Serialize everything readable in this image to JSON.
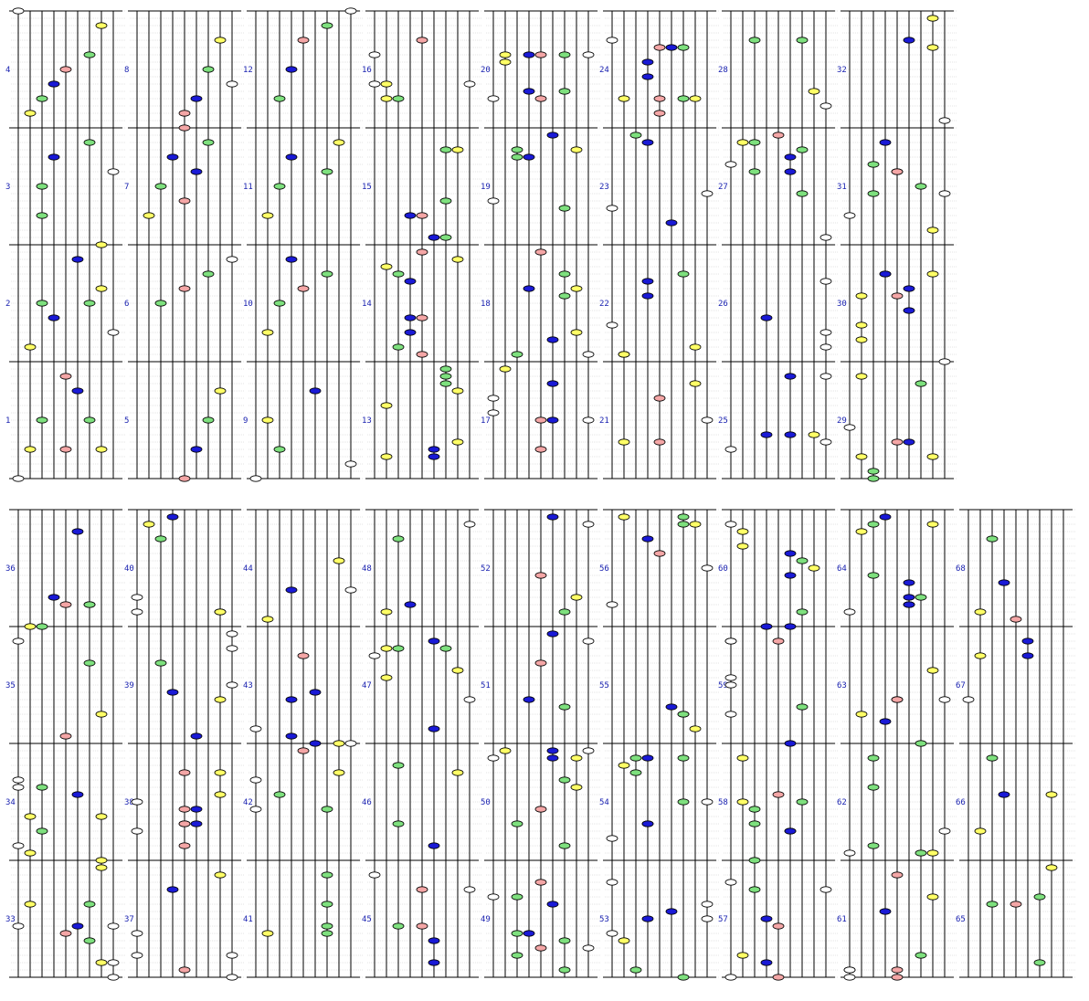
{
  "chart": {
    "title": "",
    "lane_count": 9,
    "measures_per_column": 4,
    "column_count": 17,
    "colors": {
      "background": "#ffffff",
      "lane_line": "#000000",
      "measure_line": "#000000",
      "beat_line": "#c8c8c8",
      "measure_number": "#1a22b0",
      "note_outline": "#000000"
    },
    "note_colors": {
      "white": "#ffffff",
      "yellow": "#ffff66",
      "green": "#7ee07e",
      "blue": "#1a1ad6",
      "red": "#f4a6a6"
    },
    "lane_note_color": [
      "white",
      "yellow",
      "green",
      "blue",
      "red",
      "blue",
      "green",
      "yellow",
      "white"
    ]
  },
  "chart_data": {
    "type": "table",
    "description_free": true,
    "measures": [
      {
        "n": 1,
        "notes": [
          [
            0,
            0
          ],
          [
            0.5,
            2
          ],
          [
            0.25,
            1
          ],
          [
            0.5,
            6
          ],
          [
            0.25,
            7
          ],
          [
            0.75,
            5
          ],
          [
            0.875,
            4
          ],
          [
            0.25,
            4
          ]
        ]
      },
      {
        "n": 2,
        "notes": [
          [
            0.125,
            1
          ],
          [
            0.375,
            3
          ],
          [
            0.5,
            2
          ],
          [
            0.5,
            6
          ],
          [
            0.25,
            8
          ],
          [
            0.875,
            5
          ],
          [
            0.625,
            7
          ]
        ]
      },
      {
        "n": 3,
        "notes": [
          [
            0.5,
            2
          ],
          [
            0.75,
            3
          ],
          [
            0.25,
            2
          ],
          [
            0.0,
            7
          ],
          [
            0.875,
            6
          ],
          [
            0.625,
            8
          ]
        ]
      },
      {
        "n": 4,
        "notes": [
          [
            0.125,
            1
          ],
          [
            0.25,
            2
          ],
          [
            0.375,
            3
          ],
          [
            0.5,
            4
          ],
          [
            0.625,
            6
          ],
          [
            0.875,
            7
          ],
          [
            1.0,
            0
          ]
        ]
      },
      {
        "n": 5,
        "notes": [
          [
            0,
            4
          ],
          [
            0.5,
            6
          ],
          [
            0.25,
            5
          ],
          [
            0.75,
            7
          ]
        ]
      },
      {
        "n": 6,
        "notes": [
          [
            0.5,
            2
          ],
          [
            0.625,
            4
          ],
          [
            0.75,
            6
          ],
          [
            0.875,
            8
          ]
        ]
      },
      {
        "n": 7,
        "notes": [
          [
            0.25,
            1
          ],
          [
            0.5,
            2
          ],
          [
            0.75,
            3
          ],
          [
            0.375,
            4
          ],
          [
            0.625,
            5
          ],
          [
            0.875,
            6
          ]
        ]
      },
      {
        "n": 8,
        "notes": [
          [
            0.0,
            4
          ],
          [
            0.25,
            5
          ],
          [
            0.5,
            6
          ],
          [
            0.75,
            7
          ],
          [
            0.125,
            4
          ],
          [
            0.375,
            8
          ]
        ]
      },
      {
        "n": 9,
        "notes": [
          [
            0,
            0
          ],
          [
            0.5,
            1
          ],
          [
            0.25,
            2
          ],
          [
            0.75,
            5
          ],
          [
            0.125,
            8
          ]
        ]
      },
      {
        "n": 10,
        "notes": [
          [
            0.25,
            1
          ],
          [
            0.5,
            2
          ],
          [
            0.75,
            6
          ],
          [
            0.875,
            3
          ],
          [
            0.625,
            4
          ]
        ]
      },
      {
        "n": 11,
        "notes": [
          [
            0.25,
            1
          ],
          [
            0.5,
            2
          ],
          [
            0.75,
            3
          ],
          [
            0.625,
            6
          ],
          [
            0.875,
            7
          ]
        ]
      },
      {
        "n": 12,
        "notes": [
          [
            0.25,
            2
          ],
          [
            0.5,
            3
          ],
          [
            0.75,
            4
          ],
          [
            0.875,
            6
          ],
          [
            1.0,
            8
          ]
        ]
      }
    ]
  }
}
